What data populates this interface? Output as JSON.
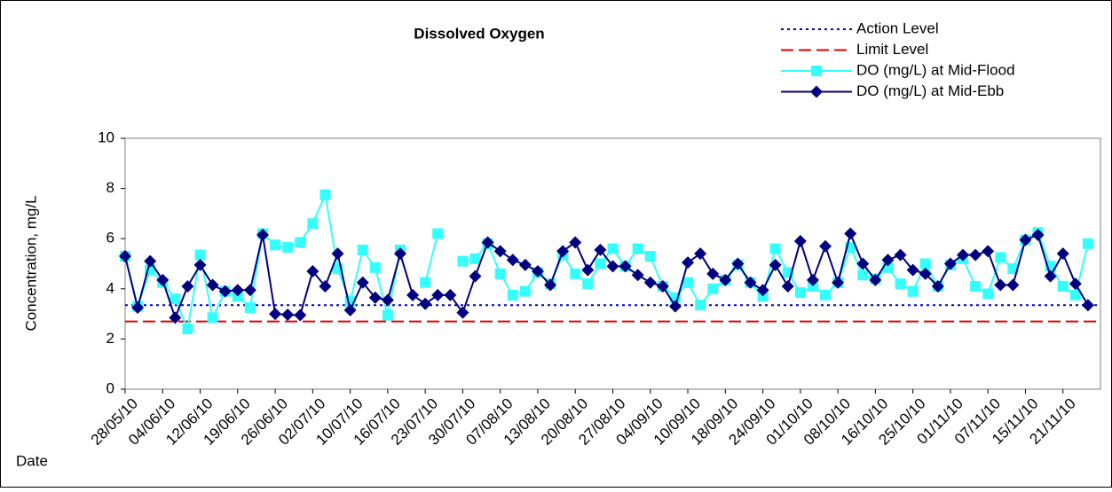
{
  "chart_data": {
    "type": "line",
    "title": "Dissolved Oxygen",
    "y_label": "Concentration, mg/L",
    "x_label": "Date",
    "categories": [
      "28/05/10",
      null,
      null,
      "04/06/10",
      null,
      null,
      "12/06/10",
      null,
      null,
      "19/06/10",
      null,
      null,
      "26/06/10",
      null,
      null,
      "02/07/10",
      null,
      null,
      "10/07/10",
      null,
      null,
      "16/07/10",
      null,
      null,
      "23/07/10",
      null,
      null,
      "30/07/10",
      null,
      null,
      "07/08/10",
      null,
      null,
      "13/08/10",
      null,
      null,
      "20/08/10",
      null,
      null,
      "27/08/10",
      null,
      null,
      "04/09/10",
      null,
      null,
      "10/09/10",
      null,
      null,
      "18/09/10",
      null,
      null,
      "24/09/10",
      null,
      null,
      "01/10/10",
      null,
      null,
      "08/10/10",
      null,
      null,
      "16/10/10",
      null,
      null,
      "25/10/10",
      null,
      null,
      "01/11/10",
      null,
      null,
      "07/11/10",
      null,
      null,
      "15/11/10",
      null,
      null,
      "21/11/10",
      null,
      null
    ],
    "levels": [
      {
        "name": "Action Level",
        "color": "#0000cc",
        "value": 3.35,
        "dash": "dotted"
      },
      {
        "name": "Limit Level",
        "color": "#e00000",
        "value": 2.7,
        "dash": "dashed"
      }
    ],
    "series": [
      {
        "name": "DO (mg/L) at Mid-Flood",
        "color": "#33ffff",
        "marker": "square",
        "values": [
          5.3,
          3.3,
          4.75,
          4.25,
          3.6,
          2.4,
          5.35,
          2.85,
          3.9,
          3.7,
          3.25,
          6.2,
          5.75,
          5.65,
          5.85,
          6.6,
          7.75,
          4.8,
          3.5,
          5.55,
          4.85,
          2.95,
          5.55,
          null,
          4.25,
          6.2,
          null,
          5.1,
          5.2,
          5.8,
          4.6,
          3.75,
          3.9,
          4.65,
          4.2,
          5.35,
          4.6,
          4.2,
          5.0,
          5.6,
          4.9,
          5.6,
          5.3,
          4.1,
          3.65,
          4.25,
          3.35,
          4.0,
          4.35,
          4.95,
          4.25,
          3.7,
          5.6,
          4.65,
          3.85,
          4.1,
          3.75,
          4.25,
          5.65,
          4.55,
          4.4,
          4.85,
          4.2,
          3.9,
          5.0,
          4.1,
          4.95,
          5.2,
          4.1,
          3.8,
          5.25,
          4.8,
          5.95,
          6.25,
          4.9,
          4.1,
          3.75,
          5.8
        ]
      },
      {
        "name": "DO (mg/L) at Mid-Ebb",
        "color": "#000080",
        "marker": "diamond",
        "values": [
          5.3,
          3.25,
          5.1,
          4.35,
          2.85,
          4.1,
          4.95,
          4.15,
          3.9,
          3.95,
          3.95,
          6.15,
          3.0,
          2.97,
          2.95,
          4.7,
          4.1,
          5.4,
          3.15,
          4.25,
          3.65,
          3.55,
          5.4,
          3.75,
          3.4,
          3.75,
          3.75,
          3.05,
          4.5,
          5.85,
          5.5,
          5.15,
          4.95,
          4.7,
          4.15,
          5.5,
          5.85,
          4.75,
          5.55,
          4.9,
          4.9,
          4.55,
          4.25,
          4.1,
          3.3,
          5.05,
          5.4,
          4.6,
          4.35,
          5.0,
          4.25,
          3.95,
          4.95,
          4.1,
          5.9,
          4.35,
          5.7,
          4.25,
          6.2,
          5.0,
          4.35,
          5.15,
          5.35,
          4.75,
          4.6,
          4.1,
          5.0,
          5.35,
          5.35,
          5.5,
          4.15,
          4.15,
          5.95,
          6.15,
          4.5,
          5.4,
          4.2,
          3.35
        ]
      }
    ],
    "ylim": [
      0,
      10
    ],
    "yticks": [
      0,
      2,
      4,
      6,
      8,
      10
    ],
    "grid": false,
    "legend": "top-right"
  }
}
